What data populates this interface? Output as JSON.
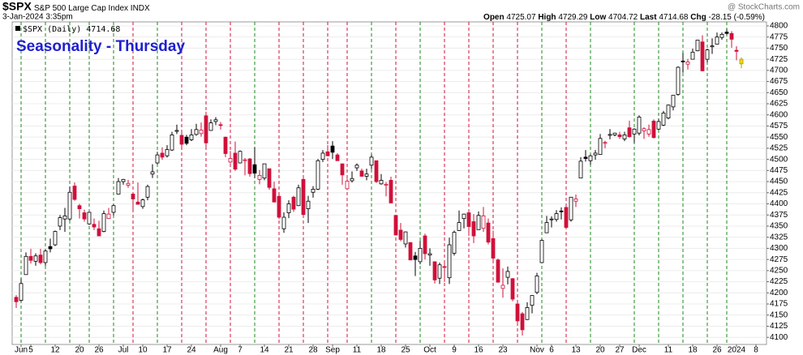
{
  "chart_data": {
    "type": "candlestick",
    "symbol": "$SPX",
    "name": "S&P 500 Large Cap Index",
    "exchange": "INDX",
    "watermark": "@ StockCharts.com",
    "timestamp": "3-Jan-2024 3:35pm",
    "title": "Seasonality - Thursday",
    "legend": "$SPX (Daily)",
    "stats_labels": [
      "Open",
      "High",
      "Low",
      "Last",
      "Chg"
    ],
    "change": -28.15,
    "change_pct": -0.59,
    "change_pct_label": "(-0.59%)",
    "up_color": "#000000",
    "down_color": "#d0103a",
    "current_color": "#f0dc00",
    "thursday_up_color": "#1a8a1a",
    "thursday_down_color": "#d0103a",
    "title_color": "#1f1fd0",
    "grid": true,
    "x": [
      "2023-05-31",
      "2023-06-01",
      "2023-06-02",
      "2023-06-05",
      "2023-06-06",
      "2023-06-07",
      "2023-06-08",
      "2023-06-09",
      "2023-06-12",
      "2023-06-13",
      "2023-06-14",
      "2023-06-15",
      "2023-06-16",
      "2023-06-20",
      "2023-06-21",
      "2023-06-22",
      "2023-06-23",
      "2023-06-26",
      "2023-06-27",
      "2023-06-28",
      "2023-06-29",
      "2023-06-30",
      "2023-07-03",
      "2023-07-05",
      "2023-07-06",
      "2023-07-07",
      "2023-07-10",
      "2023-07-11",
      "2023-07-12",
      "2023-07-13",
      "2023-07-14",
      "2023-07-17",
      "2023-07-18",
      "2023-07-19",
      "2023-07-20",
      "2023-07-21",
      "2023-07-24",
      "2023-07-25",
      "2023-07-26",
      "2023-07-27",
      "2023-07-28",
      "2023-07-31",
      "2023-08-01",
      "2023-08-02",
      "2023-08-03",
      "2023-08-04",
      "2023-08-07",
      "2023-08-08",
      "2023-08-09",
      "2023-08-10",
      "2023-08-11",
      "2023-08-14",
      "2023-08-15",
      "2023-08-16",
      "2023-08-17",
      "2023-08-18",
      "2023-08-21",
      "2023-08-22",
      "2023-08-23",
      "2023-08-24",
      "2023-08-25",
      "2023-08-28",
      "2023-08-29",
      "2023-08-30",
      "2023-08-31",
      "2023-09-01",
      "2023-09-05",
      "2023-09-06",
      "2023-09-07",
      "2023-09-08",
      "2023-09-11",
      "2023-09-12",
      "2023-09-13",
      "2023-09-14",
      "2023-09-15",
      "2023-09-18",
      "2023-09-19",
      "2023-09-20",
      "2023-09-21",
      "2023-09-22",
      "2023-09-25",
      "2023-09-26",
      "2023-09-27",
      "2023-09-28",
      "2023-09-29",
      "2023-10-02",
      "2023-10-03",
      "2023-10-04",
      "2023-10-05",
      "2023-10-06",
      "2023-10-09",
      "2023-10-10",
      "2023-10-11",
      "2023-10-12",
      "2023-10-13",
      "2023-10-16",
      "2023-10-17",
      "2023-10-18",
      "2023-10-19",
      "2023-10-20",
      "2023-10-23",
      "2023-10-24",
      "2023-10-25",
      "2023-10-26",
      "2023-10-27",
      "2023-10-30",
      "2023-10-31",
      "2023-11-01",
      "2023-11-02",
      "2023-11-03",
      "2023-11-06",
      "2023-11-07",
      "2023-11-08",
      "2023-11-09",
      "2023-11-10",
      "2023-11-13",
      "2023-11-14",
      "2023-11-15",
      "2023-11-16",
      "2023-11-17",
      "2023-11-20",
      "2023-11-21",
      "2023-11-22",
      "2023-11-24",
      "2023-11-27",
      "2023-11-28",
      "2023-11-29",
      "2023-11-30",
      "2023-12-01",
      "2023-12-04",
      "2023-12-05",
      "2023-12-06",
      "2023-12-07",
      "2023-12-08",
      "2023-12-11",
      "2023-12-12",
      "2023-12-13",
      "2023-12-14",
      "2023-12-15",
      "2023-12-18",
      "2023-12-19",
      "2023-12-20",
      "2023-12-21",
      "2023-12-22",
      "2023-12-26",
      "2023-12-27",
      "2023-12-28",
      "2023-12-29",
      "2024-01-02",
      "2024-01-03"
    ],
    "ohlc": [
      [
        4190,
        4195,
        4166,
        4180
      ],
      [
        4183,
        4232,
        4180,
        4221
      ],
      [
        4241,
        4291,
        4241,
        4282
      ],
      [
        4282,
        4299,
        4266,
        4273
      ],
      [
        4271,
        4289,
        4261,
        4283
      ],
      [
        4285,
        4299,
        4264,
        4268
      ],
      [
        4268,
        4298,
        4261,
        4294
      ],
      [
        4304,
        4322,
        4291,
        4299
      ],
      [
        4308,
        4340,
        4305,
        4338
      ],
      [
        4350,
        4375,
        4341,
        4369
      ],
      [
        4366,
        4391,
        4337,
        4373
      ],
      [
        4366,
        4439,
        4362,
        4426
      ],
      [
        4440,
        4448,
        4407,
        4410
      ],
      [
        4396,
        4400,
        4367,
        4389
      ],
      [
        4380,
        4387,
        4360,
        4366
      ],
      [
        4355,
        4382,
        4353,
        4381
      ],
      [
        4354,
        4367,
        4341,
        4348
      ],
      [
        4344,
        4362,
        4328,
        4328
      ],
      [
        4338,
        4385,
        4336,
        4378
      ],
      [
        4367,
        4391,
        4366,
        4377
      ],
      [
        4381,
        4399,
        4374,
        4396
      ],
      [
        4422,
        4458,
        4422,
        4450
      ],
      [
        4450,
        4456,
        4443,
        4455
      ],
      [
        4442,
        4454,
        4436,
        4446
      ],
      [
        4422,
        4423,
        4385,
        4411
      ],
      [
        4404,
        4448,
        4398,
        4399
      ],
      [
        4394,
        4412,
        4389,
        4409
      ],
      [
        4415,
        4443,
        4408,
        4439
      ],
      [
        4467,
        4489,
        4458,
        4472
      ],
      [
        4492,
        4517,
        4489,
        4510
      ],
      [
        4514,
        4527,
        4499,
        4505
      ],
      [
        4508,
        4532,
        4504,
        4522
      ],
      [
        4521,
        4562,
        4519,
        4555
      ],
      [
        4563,
        4578,
        4557,
        4565
      ],
      [
        4554,
        4565,
        4527,
        4534
      ],
      [
        4550,
        4555,
        4532,
        4536
      ],
      [
        4544,
        4568,
        4541,
        4555
      ],
      [
        4556,
        4580,
        4553,
        4567
      ],
      [
        4558,
        4583,
        4551,
        4566
      ],
      [
        4598,
        4607,
        4528,
        4537
      ],
      [
        4565,
        4590,
        4564,
        4582
      ],
      [
        4585,
        4595,
        4577,
        4589
      ],
      [
        4578,
        4584,
        4567,
        4577
      ],
      [
        4550,
        4551,
        4505,
        4513
      ],
      [
        4494,
        4519,
        4491,
        4502
      ],
      [
        4514,
        4540,
        4474,
        4478
      ],
      [
        4492,
        4520,
        4491,
        4518
      ],
      [
        4499,
        4503,
        4464,
        4499
      ],
      [
        4501,
        4503,
        4461,
        4468
      ],
      [
        4488,
        4527,
        4458,
        4469
      ],
      [
        4455,
        4476,
        4444,
        4464
      ],
      [
        4458,
        4490,
        4453,
        4490
      ],
      [
        4479,
        4479,
        4432,
        4437
      ],
      [
        4434,
        4450,
        4404,
        4404
      ],
      [
        4417,
        4422,
        4366,
        4370
      ],
      [
        4344,
        4381,
        4335,
        4370
      ],
      [
        4380,
        4408,
        4368,
        4400
      ],
      [
        4415,
        4418,
        4382,
        4388
      ],
      [
        4396,
        4443,
        4395,
        4436
      ],
      [
        4455,
        4459,
        4376,
        4376
      ],
      [
        4389,
        4418,
        4357,
        4406
      ],
      [
        4426,
        4440,
        4414,
        4433
      ],
      [
        4433,
        4501,
        4431,
        4497
      ],
      [
        4500,
        4521,
        4494,
        4514
      ],
      [
        4517,
        4532,
        4507,
        4508
      ],
      [
        4530,
        4541,
        4501,
        4516
      ],
      [
        4510,
        4514,
        4497,
        4497
      ],
      [
        4490,
        4490,
        4443,
        4465
      ],
      [
        4434,
        4457,
        4431,
        4451
      ],
      [
        4452,
        4473,
        4448,
        4457
      ],
      [
        4481,
        4491,
        4474,
        4487
      ],
      [
        4474,
        4479,
        4461,
        4462
      ],
      [
        4462,
        4479,
        4453,
        4467
      ],
      [
        4487,
        4511,
        4478,
        4505
      ],
      [
        4497,
        4497,
        4447,
        4450
      ],
      [
        4445,
        4467,
        4443,
        4453
      ],
      [
        4444,
        4449,
        4417,
        4444
      ],
      [
        4453,
        4461,
        4402,
        4402
      ],
      [
        4374,
        4375,
        4329,
        4330
      ],
      [
        4341,
        4357,
        4316,
        4320
      ],
      [
        4310,
        4338,
        4302,
        4337
      ],
      [
        4313,
        4314,
        4273,
        4274
      ],
      [
        4283,
        4292,
        4238,
        4275
      ],
      [
        4270,
        4317,
        4264,
        4300
      ],
      [
        4328,
        4333,
        4275,
        4288
      ],
      [
        4285,
        4300,
        4261,
        4288
      ],
      [
        4270,
        4270,
        4221,
        4229
      ],
      [
        4233,
        4268,
        4220,
        4263
      ],
      [
        4259,
        4268,
        4225,
        4258
      ],
      [
        4234,
        4324,
        4220,
        4308
      ],
      [
        4289,
        4340,
        4284,
        4336
      ],
      [
        4340,
        4385,
        4339,
        4358
      ],
      [
        4367,
        4378,
        4345,
        4377
      ],
      [
        4380,
        4386,
        4328,
        4349
      ],
      [
        4360,
        4377,
        4312,
        4328
      ],
      [
        4342,
        4383,
        4342,
        4374
      ],
      [
        4345,
        4393,
        4337,
        4373
      ],
      [
        4357,
        4367,
        4309,
        4314
      ],
      [
        4322,
        4340,
        4269,
        4278
      ],
      [
        4274,
        4277,
        4223,
        4224
      ],
      [
        4210,
        4255,
        4189,
        4217
      ],
      [
        4235,
        4259,
        4219,
        4248
      ],
      [
        4232,
        4233,
        4181,
        4186
      ],
      [
        4175,
        4184,
        4128,
        4137
      ],
      [
        4153,
        4157,
        4104,
        4117
      ],
      [
        4140,
        4179,
        4139,
        4167
      ],
      [
        4172,
        4195,
        4154,
        4194
      ],
      [
        4201,
        4245,
        4197,
        4238
      ],
      [
        4268,
        4320,
        4268,
        4318
      ],
      [
        4335,
        4373,
        4335,
        4358
      ],
      [
        4365,
        4372,
        4347,
        4366
      ],
      [
        4365,
        4386,
        4360,
        4378
      ],
      [
        4384,
        4392,
        4365,
        4383
      ],
      [
        4392,
        4394,
        4343,
        4347
      ],
      [
        4364,
        4415,
        4360,
        4415
      ],
      [
        4406,
        4421,
        4393,
        4411
      ],
      [
        4458,
        4505,
        4458,
        4496
      ],
      [
        4505,
        4521,
        4495,
        4502
      ],
      [
        4497,
        4511,
        4488,
        4508
      ],
      [
        4510,
        4521,
        4499,
        4514
      ],
      [
        4511,
        4557,
        4510,
        4547
      ],
      [
        4538,
        4542,
        4525,
        4538
      ],
      [
        4554,
        4568,
        4545,
        4556
      ],
      [
        4555,
        4560,
        4552,
        4559
      ],
      [
        4555,
        4562,
        4546,
        4551
      ],
      [
        4546,
        4562,
        4541,
        4555
      ],
      [
        4571,
        4587,
        4549,
        4551
      ],
      [
        4557,
        4570,
        4537,
        4568
      ],
      [
        4559,
        4599,
        4554,
        4595
      ],
      [
        4564,
        4572,
        4546,
        4569
      ],
      [
        4557,
        4578,
        4551,
        4567
      ],
      [
        4586,
        4590,
        4547,
        4549
      ],
      [
        4568,
        4591,
        4566,
        4585
      ],
      [
        4577,
        4609,
        4575,
        4604
      ],
      [
        4593,
        4623,
        4590,
        4622
      ],
      [
        4618,
        4644,
        4610,
        4644
      ],
      [
        4646,
        4709,
        4643,
        4707
      ],
      [
        4721,
        4739,
        4695,
        4720
      ],
      [
        4714,
        4726,
        4702,
        4719
      ],
      [
        4725,
        4749,
        4725,
        4741
      ],
      [
        4744,
        4768,
        4743,
        4768
      ],
      [
        4764,
        4779,
        4698,
        4699
      ],
      [
        4725,
        4749,
        4718,
        4746
      ],
      [
        4753,
        4772,
        4737,
        4755
      ],
      [
        4759,
        4785,
        4759,
        4775
      ],
      [
        4774,
        4785,
        4769,
        4781
      ],
      [
        4786,
        4793,
        4780,
        4783
      ],
      [
        4783,
        4788,
        4751,
        4770
      ],
      [
        4745.2,
        4754.3,
        4722.7,
        4742.83
      ],
      [
        4725.07,
        4729.29,
        4704.72,
        4714.68
      ]
    ],
    "ylim": [
      4084,
      4809
    ],
    "yticks": [
      4100,
      4125,
      4150,
      4175,
      4200,
      4225,
      4250,
      4275,
      4300,
      4325,
      4350,
      4375,
      4400,
      4425,
      4450,
      4475,
      4500,
      4525,
      4550,
      4575,
      4600,
      4625,
      4650,
      4675,
      4700,
      4725,
      4750,
      4775,
      4800
    ],
    "xticks": [
      {
        "value": "2023-06-01",
        "label": "Jun"
      },
      {
        "value": "2023-06-05",
        "label": "5"
      },
      {
        "value": "2023-06-12",
        "label": "12"
      },
      {
        "value": "2023-06-20",
        "label": "20"
      },
      {
        "value": "2023-06-26",
        "label": "26"
      },
      {
        "value": "2023-07-03",
        "label": "Jul"
      },
      {
        "value": "2023-07-10",
        "label": "10"
      },
      {
        "value": "2023-07-17",
        "label": "17"
      },
      {
        "value": "2023-07-24",
        "label": "24"
      },
      {
        "value": "2023-08-01",
        "label": "Aug"
      },
      {
        "value": "2023-08-07",
        "label": "7"
      },
      {
        "value": "2023-08-14",
        "label": "14"
      },
      {
        "value": "2023-08-21",
        "label": "21"
      },
      {
        "value": "2023-08-28",
        "label": "28"
      },
      {
        "value": "2023-09-01",
        "label": "Sep"
      },
      {
        "value": "2023-09-11",
        "label": "11"
      },
      {
        "value": "2023-09-18",
        "label": "18"
      },
      {
        "value": "2023-09-25",
        "label": "25"
      },
      {
        "value": "2023-10-02",
        "label": "Oct"
      },
      {
        "value": "2023-10-09",
        "label": "9"
      },
      {
        "value": "2023-10-16",
        "label": "16"
      },
      {
        "value": "2023-10-23",
        "label": "23"
      },
      {
        "value": "2023-11-01",
        "label": "Nov"
      },
      {
        "value": "2023-11-06",
        "label": "6"
      },
      {
        "value": "2023-11-13",
        "label": "13"
      },
      {
        "value": "2023-11-20",
        "label": "20"
      },
      {
        "value": "2023-11-27",
        "label": "27"
      },
      {
        "value": "2023-12-01",
        "label": "Dec"
      },
      {
        "value": "2023-12-11",
        "label": "11"
      },
      {
        "value": "2023-12-18",
        "label": "18"
      },
      {
        "value": "2023-12-26",
        "label": "26"
      },
      {
        "value": "2024-01-02",
        "label": "2024"
      },
      {
        "value": "2024-01-08",
        "label": "8"
      }
    ]
  }
}
